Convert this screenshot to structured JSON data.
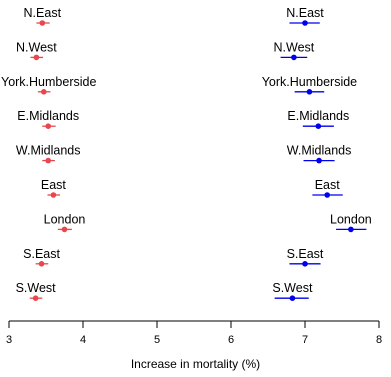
{
  "chart_data": {
    "type": "scatter",
    "xlabel": "Increase in mortality (%)",
    "xlim": [
      3,
      8
    ],
    "xticks": [
      3,
      4,
      5,
      6,
      7,
      8
    ],
    "categories": [
      "N.East",
      "N.West",
      "York.Humberside",
      "E.Midlands",
      "W.Midlands",
      "East",
      "London",
      "S.East",
      "S.West"
    ],
    "series": [
      {
        "color": "#e8474f",
        "points": [
          {
            "category": "N.East",
            "value": 3.45,
            "low": 3.37,
            "high": 3.55
          },
          {
            "category": "N.West",
            "value": 3.37,
            "low": 3.29,
            "high": 3.46
          },
          {
            "category": "York.Humberside",
            "value": 3.47,
            "low": 3.39,
            "high": 3.56
          },
          {
            "category": "E.Midlands",
            "value": 3.53,
            "low": 3.45,
            "high": 3.63
          },
          {
            "category": "W.Midlands",
            "value": 3.53,
            "low": 3.45,
            "high": 3.62
          },
          {
            "category": "East",
            "value": 3.6,
            "low": 3.52,
            "high": 3.69
          },
          {
            "category": "London",
            "value": 3.75,
            "low": 3.66,
            "high": 3.85
          },
          {
            "category": "S.East",
            "value": 3.44,
            "low": 3.36,
            "high": 3.53
          },
          {
            "category": "S.West",
            "value": 3.36,
            "low": 3.28,
            "high": 3.45
          }
        ]
      },
      {
        "color": "#0000ee",
        "points": [
          {
            "category": "N.East",
            "value": 7.0,
            "low": 6.79,
            "high": 7.2
          },
          {
            "category": "N.West",
            "value": 6.85,
            "low": 6.67,
            "high": 7.03
          },
          {
            "category": "York.Humberside",
            "value": 7.06,
            "low": 6.86,
            "high": 7.26
          },
          {
            "category": "E.Midlands",
            "value": 7.18,
            "low": 6.97,
            "high": 7.39
          },
          {
            "category": "W.Midlands",
            "value": 7.19,
            "low": 6.98,
            "high": 7.4
          },
          {
            "category": "East",
            "value": 7.3,
            "low": 7.1,
            "high": 7.51
          },
          {
            "category": "London",
            "value": 7.62,
            "low": 7.42,
            "high": 7.83
          },
          {
            "category": "S.East",
            "value": 7.0,
            "low": 6.79,
            "high": 7.21
          },
          {
            "category": "S.West",
            "value": 6.83,
            "low": 6.59,
            "high": 7.05
          }
        ]
      }
    ]
  }
}
